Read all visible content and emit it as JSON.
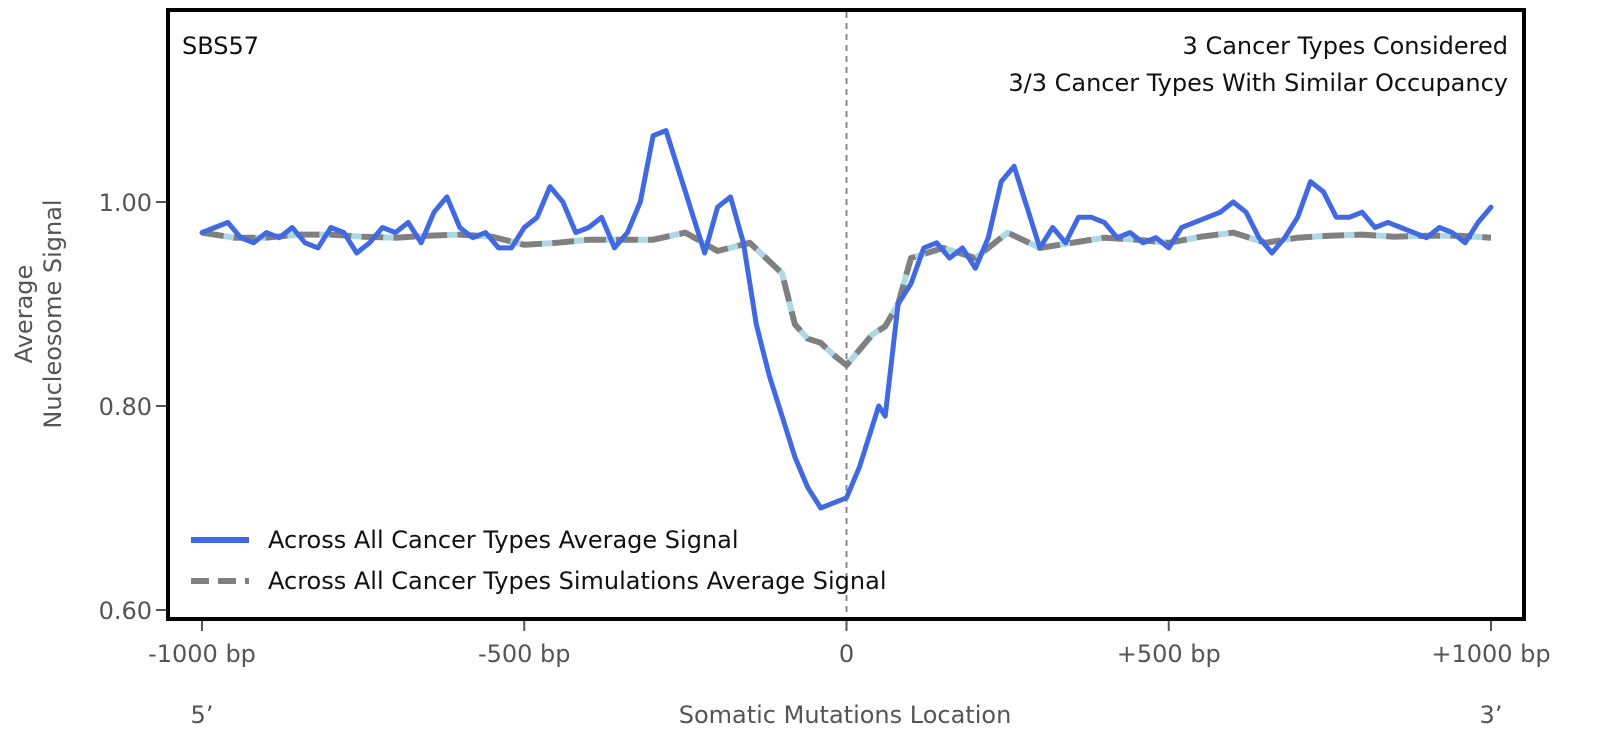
{
  "chart_data": {
    "type": "line",
    "signature_label": "SBS57",
    "annotation_lines": [
      "3 Cancer Types Considered",
      "3/3 Cancer Types With Similar Occupancy"
    ],
    "xlabel": "Somatic Mutations Location",
    "ylabel_lines": [
      "Average",
      "Nucleosome Signal"
    ],
    "five_prime_label": "5’",
    "three_prime_label": "3’",
    "xlim": [
      -1000,
      1000
    ],
    "ylim": [
      0.59,
      1.19
    ],
    "xticks": [
      -1000,
      -500,
      0,
      500,
      1000
    ],
    "xtick_labels": [
      "-1000 bp",
      "-500 bp",
      "0",
      "+500 bp",
      "+1000 bp"
    ],
    "yticks": [
      0.6,
      0.8,
      1.0
    ],
    "ytick_labels": [
      "0.60",
      "0.80",
      "1.00"
    ],
    "colors": {
      "observed": "#4169e1",
      "simulated": "#808080",
      "simulated_accent": "#add8e6",
      "frame": "#000000",
      "center_line": "#808080"
    },
    "series": [
      {
        "name": "Across All Cancer Types Average Signal",
        "style": "solid",
        "x": [
          -1000,
          -980,
          -960,
          -940,
          -920,
          -900,
          -880,
          -860,
          -840,
          -820,
          -800,
          -780,
          -760,
          -740,
          -720,
          -700,
          -680,
          -660,
          -640,
          -620,
          -600,
          -580,
          -560,
          -540,
          -520,
          -500,
          -480,
          -460,
          -440,
          -420,
          -400,
          -380,
          -360,
          -340,
          -320,
          -300,
          -280,
          -260,
          -250,
          -240,
          -220,
          -200,
          -180,
          -160,
          -140,
          -120,
          -100,
          -80,
          -60,
          -40,
          -20,
          0,
          20,
          40,
          50,
          60,
          80,
          100,
          120,
          140,
          160,
          180,
          200,
          220,
          240,
          260,
          280,
          300,
          320,
          340,
          360,
          380,
          400,
          420,
          440,
          460,
          480,
          500,
          520,
          540,
          560,
          580,
          600,
          620,
          640,
          660,
          680,
          700,
          720,
          740,
          760,
          780,
          800,
          820,
          840,
          860,
          880,
          900,
          920,
          940,
          960,
          980,
          1000
        ],
        "values": [
          0.97,
          0.975,
          0.98,
          0.965,
          0.96,
          0.97,
          0.965,
          0.975,
          0.96,
          0.955,
          0.975,
          0.97,
          0.95,
          0.96,
          0.975,
          0.97,
          0.98,
          0.96,
          0.99,
          1.005,
          0.975,
          0.965,
          0.97,
          0.955,
          0.955,
          0.975,
          0.985,
          1.015,
          1.0,
          0.97,
          0.975,
          0.985,
          0.955,
          0.97,
          1.0,
          1.065,
          1.07,
          1.03,
          1.01,
          0.99,
          0.95,
          0.995,
          1.005,
          0.96,
          0.88,
          0.83,
          0.79,
          0.75,
          0.72,
          0.7,
          0.705,
          0.71,
          0.74,
          0.78,
          0.8,
          0.79,
          0.9,
          0.92,
          0.955,
          0.96,
          0.945,
          0.955,
          0.935,
          0.965,
          1.02,
          1.035,
          0.995,
          0.955,
          0.975,
          0.96,
          0.985,
          0.985,
          0.98,
          0.965,
          0.97,
          0.96,
          0.965,
          0.955,
          0.975,
          0.98,
          0.985,
          0.99,
          1.0,
          0.99,
          0.965,
          0.95,
          0.965,
          0.985,
          1.02,
          1.01,
          0.985,
          0.985,
          0.99,
          0.975,
          0.98,
          0.975,
          0.97,
          0.965,
          0.975,
          0.97,
          0.96,
          0.98,
          0.995
        ]
      },
      {
        "name": "Across All Cancer Types Simulations Average Signal",
        "style": "dashed",
        "x": [
          -1000,
          -950,
          -900,
          -850,
          -800,
          -750,
          -700,
          -650,
          -600,
          -550,
          -500,
          -450,
          -400,
          -350,
          -300,
          -250,
          -200,
          -150,
          -100,
          -80,
          -60,
          -40,
          -20,
          0,
          20,
          40,
          60,
          80,
          100,
          150,
          200,
          250,
          300,
          350,
          400,
          450,
          500,
          550,
          600,
          650,
          700,
          750,
          800,
          850,
          900,
          950,
          1000
        ],
        "values": [
          0.97,
          0.965,
          0.965,
          0.968,
          0.968,
          0.966,
          0.965,
          0.967,
          0.968,
          0.966,
          0.958,
          0.96,
          0.963,
          0.963,
          0.963,
          0.97,
          0.952,
          0.96,
          0.93,
          0.88,
          0.866,
          0.862,
          0.85,
          0.84,
          0.855,
          0.87,
          0.878,
          0.9,
          0.945,
          0.955,
          0.945,
          0.97,
          0.955,
          0.96,
          0.965,
          0.963,
          0.96,
          0.966,
          0.97,
          0.96,
          0.965,
          0.967,
          0.968,
          0.966,
          0.967,
          0.967,
          0.965
        ]
      }
    ],
    "legend": {
      "position": "lower-left",
      "entries": [
        "Across All Cancer Types Average Signal",
        "Across All Cancer Types Simulations Average Signal"
      ]
    }
  }
}
